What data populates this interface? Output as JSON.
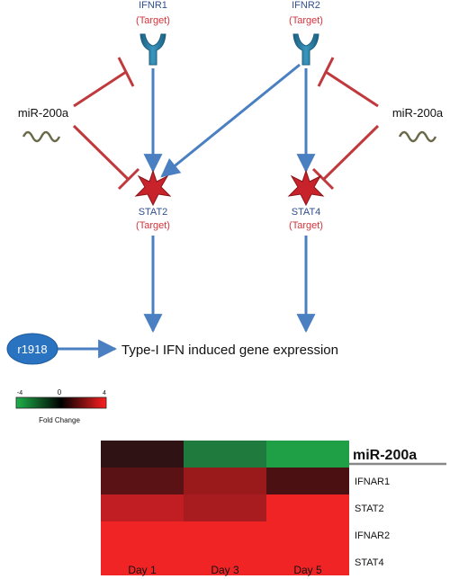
{
  "pathway": {
    "receptor_left": {
      "name": "IFNR1",
      "role": "(Target)"
    },
    "receptor_right": {
      "name": "IFNR2",
      "role": "(Target)"
    },
    "stat_left": {
      "name": "STAT2",
      "role": "(Target)"
    },
    "stat_right": {
      "name": "STAT4",
      "role": "(Target)"
    },
    "mirna_left": "miR-200a",
    "mirna_right": "miR-200a",
    "stimulus": "r1918",
    "output": "Type-I IFN induced gene expression"
  },
  "colorbar": {
    "min_label": "-4",
    "mid_label": "0",
    "max_label": "4",
    "caption": "Fold Change",
    "low_color": "#1fb24a",
    "mid_color": "#000000",
    "high_color": "#ff2020"
  },
  "heatmap": {
    "columns": [
      "Day 1",
      "Day 3",
      "Day 5"
    ],
    "rows": [
      {
        "label": "miR-200a",
        "colors": [
          "#2e1214",
          "#1f7a3d",
          "#20a046"
        ]
      },
      {
        "label": "IFNAR1",
        "colors": [
          "#5a1215",
          "#9a1a1c",
          "#4a1012"
        ]
      },
      {
        "label": "STAT2",
        "colors": [
          "#c01e22",
          "#a81c1f",
          "#f02424"
        ]
      },
      {
        "label": "IFNAR2",
        "colors": [
          "#f02424",
          "#f02424",
          "#f02424"
        ]
      },
      {
        "label": "STAT4",
        "colors": [
          "#f02424",
          "#f02424",
          "#f02424"
        ]
      }
    ]
  },
  "colors": {
    "activation_arrow": "#4a7fc1",
    "inhibition": "#c0393d",
    "receptor": "#2c7fa3",
    "stat": "#c8232a",
    "stimulus_badge": "#2a73c0"
  }
}
